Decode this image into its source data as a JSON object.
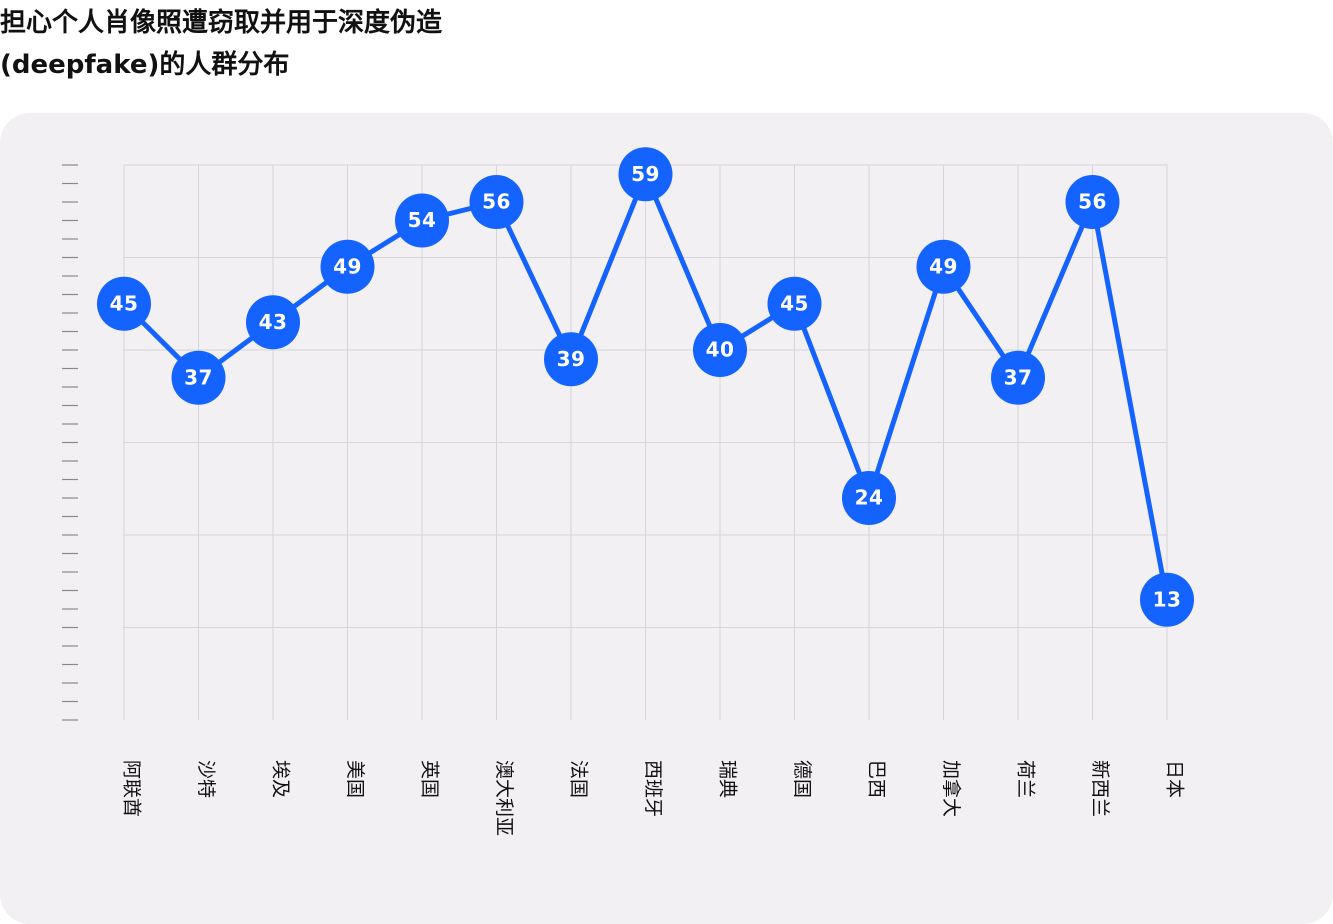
{
  "title": {
    "line1": "担心个人肖像照遭窃取并用于深度伪造",
    "line2": "(deepfake)的人群分布"
  },
  "colors": {
    "accent": "#1463ff",
    "panel": "#f2f0f2",
    "grid": "#d7d5d9",
    "text": "#111111",
    "label_text": "#ffffff"
  },
  "chart_data": {
    "type": "line",
    "title": "担心个人肖像照遭窃取并用于深度伪造(deepfake)的人群分布",
    "categories": [
      "阿联酋",
      "沙特",
      "埃及",
      "美国",
      "英国",
      "澳大利亚",
      "法国",
      "西班牙",
      "瑞典",
      "德国",
      "巴西",
      "加拿大",
      "荷兰",
      "新西兰",
      "日本"
    ],
    "series": [
      {
        "values": [
          45,
          37,
          43,
          49,
          54,
          56,
          39,
          59,
          40,
          45,
          24,
          49,
          37,
          56,
          13
        ]
      }
    ],
    "ylim": [
      0,
      60
    ],
    "y_tick_labels": false,
    "grid": true,
    "data_labels": true,
    "xlabel": "",
    "ylabel": ""
  }
}
